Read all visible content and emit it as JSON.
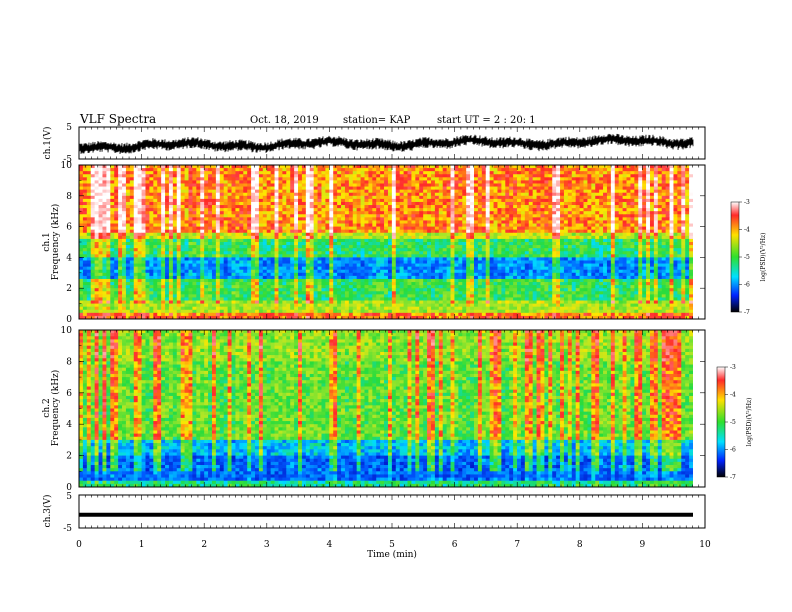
{
  "header": {
    "title": "VLF Spectra",
    "date": "Oct. 18, 2019",
    "station": "station= KAP",
    "start_ut": "start  UT =   2 : 20: 1"
  },
  "chart_data": [
    {
      "type": "line",
      "ylabel": "ch.1(V)",
      "ylim": [
        -5,
        5
      ],
      "yticks": [
        "5",
        "-5"
      ],
      "xlim": [
        0,
        10
      ],
      "description_signal": "noisy waveform around -1 V rising to about 1 V"
    },
    {
      "type": "heatmap",
      "ylabel_line1": "ch.1",
      "ylabel_line2": "Frequency  (kHz)",
      "ylim": [
        0,
        10
      ],
      "yticks": [
        "0",
        "2",
        "4",
        "6",
        "8",
        "10"
      ],
      "xlim": [
        0,
        10
      ],
      "colorbar": {
        "label": "log(PSD)(V²/Hz)",
        "ticks": [
          "-3",
          "-4",
          "-5",
          "-6",
          "-7"
        ],
        "range": [
          -7,
          -3
        ]
      }
    },
    {
      "type": "heatmap",
      "ylabel_line1": "ch.2",
      "ylabel_line2": "Frequency  (kHz)",
      "ylim": [
        0,
        10
      ],
      "yticks": [
        "0",
        "2",
        "4",
        "6",
        "8",
        "10"
      ],
      "xlim": [
        0,
        10
      ],
      "colorbar": {
        "label": "log(PSD)(V²/Hz)",
        "ticks": [
          "-3",
          "-4",
          "-5",
          "-6",
          "-7"
        ],
        "range": [
          -7,
          -3
        ]
      }
    },
    {
      "type": "line",
      "ylabel": "ch.3(V)",
      "ylim": [
        -5,
        5
      ],
      "yticks": [
        "5",
        "-5"
      ],
      "xlim": [
        0,
        10
      ],
      "xticks": [
        "0",
        "1",
        "2",
        "3",
        "4",
        "5",
        "6",
        "7",
        "8",
        "9",
        "10"
      ],
      "xlabel": "Time  (min)",
      "constant_value": -1
    }
  ],
  "colors": {
    "background": "#ffffff",
    "axis": "#000000",
    "trace": "#000000"
  }
}
